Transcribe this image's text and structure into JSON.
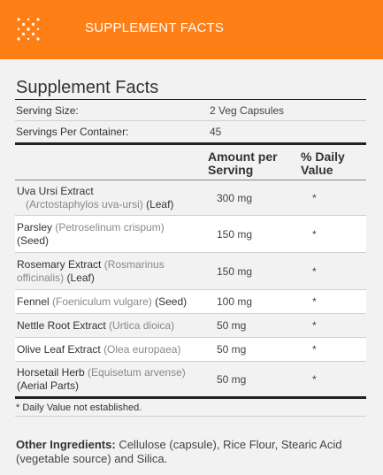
{
  "header": {
    "title": "SUPPLEMENT FACTS",
    "icon": "sparkle-x-icon",
    "background_color": "#ff7f17"
  },
  "facts": {
    "title": "Supplement Facts",
    "serving_size_label": "Serving Size:",
    "serving_size_value": "2 Veg Capsules",
    "servings_label": "Servings Per Container:",
    "servings_value": "45",
    "col_amount": "Amount per Serving",
    "col_dv": "% Daily Value",
    "ingredients": [
      {
        "name": "Uva Ursi Extract",
        "latin": "(Arctostaphylos uva-ursi)",
        "part": "(Leaf)",
        "amount": "300 mg",
        "dv": "*"
      },
      {
        "name": "Parsley",
        "latin": "(Petroselinum crispum)",
        "part": "(Seed)",
        "amount": "150 mg",
        "dv": "*"
      },
      {
        "name": "Rosemary Extract",
        "latin": "(Rosmarinus officinalis)",
        "part": "(Leaf)",
        "amount": "150 mg",
        "dv": "*"
      },
      {
        "name": "Fennel",
        "latin": "(Foeniculum vulgare)",
        "part": "(Seed)",
        "amount": "100 mg",
        "dv": "*"
      },
      {
        "name": "Nettle Root Extract",
        "latin": "(Urtica dioica)",
        "part": "",
        "amount": "50 mg",
        "dv": "*"
      },
      {
        "name": "Olive Leaf Extract",
        "latin": "(Olea europaea)",
        "part": "",
        "amount": "50 mg",
        "dv": "*"
      },
      {
        "name": "Horsetail Herb",
        "latin": "(Equisetum arvense)",
        "part": "(Aerial Parts)",
        "amount": "50 mg",
        "dv": "*"
      }
    ],
    "footnote": "* Daily Value not established."
  },
  "other": {
    "label": "Other Ingredients:",
    "text": "Cellulose (capsule), Rice Flour, Stearic Acid (vegetable source) and Silica."
  }
}
